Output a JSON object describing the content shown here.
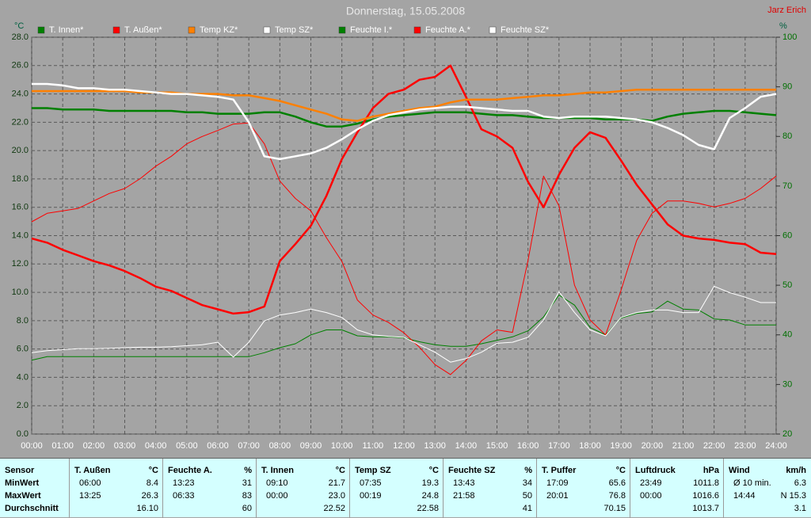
{
  "chart_data": {
    "type": "line",
    "title": "Donnerstag, 15.05.2008",
    "corner_label": "Jarz Erich",
    "y_label": "°C",
    "y2_label": "%",
    "grid": true,
    "x": [
      0,
      0.5,
      1,
      1.5,
      2,
      2.5,
      3,
      3.5,
      4,
      4.5,
      5,
      5.5,
      6,
      6.5,
      7,
      7.5,
      8,
      8.5,
      9,
      9.5,
      10,
      10.5,
      11,
      11.5,
      12,
      12.5,
      13,
      13.5,
      14,
      14.5,
      15,
      15.5,
      16,
      16.5,
      17,
      17.5,
      18,
      18.5,
      19,
      19.5,
      20,
      20.5,
      21,
      21.5,
      22,
      22.5,
      23,
      23.5,
      24
    ],
    "xlim": [
      0,
      24
    ],
    "xticks": [
      {
        "value": 0,
        "label": "00:00"
      },
      {
        "value": 1,
        "label": "01:00"
      },
      {
        "value": 2,
        "label": "02:00"
      },
      {
        "value": 3,
        "label": "03:00"
      },
      {
        "value": 4,
        "label": "04:00"
      },
      {
        "value": 5,
        "label": "05:00"
      },
      {
        "value": 6,
        "label": "06:00"
      },
      {
        "value": 7,
        "label": "07:00"
      },
      {
        "value": 8,
        "label": "08:00"
      },
      {
        "value": 9,
        "label": "09:00"
      },
      {
        "value": 10,
        "label": "10:00"
      },
      {
        "value": 11,
        "label": "11:00"
      },
      {
        "value": 12,
        "label": "12:00"
      },
      {
        "value": 13,
        "label": "13:00"
      },
      {
        "value": 14,
        "label": "14:00"
      },
      {
        "value": 15,
        "label": "15:00"
      },
      {
        "value": 16,
        "label": "16:00"
      },
      {
        "value": 17,
        "label": "17:00"
      },
      {
        "value": 18,
        "label": "18:00"
      },
      {
        "value": 19,
        "label": "19:00"
      },
      {
        "value": 20,
        "label": "20:00"
      },
      {
        "value": 21,
        "label": "21:00"
      },
      {
        "value": 22,
        "label": "22:00"
      },
      {
        "value": 23,
        "label": "23:00"
      },
      {
        "value": 24,
        "label": "24:00"
      }
    ],
    "ylim": [
      0,
      28
    ],
    "yticks": [
      {
        "value": 0,
        "label": "0.0"
      },
      {
        "value": 2,
        "label": "2.0"
      },
      {
        "value": 4,
        "label": "4.0"
      },
      {
        "value": 6,
        "label": "6.0"
      },
      {
        "value": 8,
        "label": "8.0"
      },
      {
        "value": 10,
        "label": "10.0"
      },
      {
        "value": 12,
        "label": "12.0"
      },
      {
        "value": 14,
        "label": "14.0"
      },
      {
        "value": 16,
        "label": "16.0"
      },
      {
        "value": 18,
        "label": "18.0"
      },
      {
        "value": 20,
        "label": "20.0"
      },
      {
        "value": 22,
        "label": "22.0"
      },
      {
        "value": 24,
        "label": "24.0"
      },
      {
        "value": 26,
        "label": "26.0"
      },
      {
        "value": 28,
        "label": "28.0"
      }
    ],
    "y2lim": [
      20,
      100
    ],
    "y2ticks": [
      20,
      30,
      40,
      50,
      60,
      70,
      80,
      90,
      100
    ],
    "series": [
      {
        "name": "T. Innen*",
        "color": "#008000",
        "axis": "y",
        "values": [
          23.0,
          23.0,
          22.9,
          22.9,
          22.9,
          22.8,
          22.8,
          22.8,
          22.8,
          22.8,
          22.7,
          22.7,
          22.6,
          22.6,
          22.6,
          22.7,
          22.7,
          22.4,
          22.0,
          21.7,
          21.7,
          21.9,
          22.2,
          22.4,
          22.5,
          22.6,
          22.7,
          22.7,
          22.7,
          22.6,
          22.5,
          22.5,
          22.4,
          22.3,
          22.3,
          22.3,
          22.3,
          22.2,
          22.2,
          22.2,
          22.1,
          22.4,
          22.6,
          22.7,
          22.8,
          22.8,
          22.7,
          22.6,
          22.5
        ]
      },
      {
        "name": "T. Außen*",
        "color": "#ff0000",
        "axis": "y",
        "values": [
          13.8,
          13.5,
          13.0,
          12.6,
          12.2,
          11.9,
          11.5,
          11.0,
          10.4,
          10.1,
          9.6,
          9.1,
          8.8,
          8.5,
          8.6,
          9.0,
          12.2,
          13.4,
          14.7,
          16.8,
          19.4,
          21.3,
          23.0,
          24.0,
          24.3,
          25.0,
          25.2,
          26.0,
          23.8,
          21.5,
          21.0,
          20.2,
          17.8,
          16.0,
          18.3,
          20.2,
          21.3,
          20.9,
          19.3,
          17.6,
          16.2,
          14.8,
          14.0,
          13.8,
          13.7,
          13.5,
          13.4,
          12.8,
          12.7
        ]
      },
      {
        "name": "Temp KZ*",
        "color": "#ff8000",
        "axis": "y",
        "values": [
          24.2,
          24.2,
          24.2,
          24.2,
          24.2,
          24.2,
          24.2,
          24.1,
          24.1,
          24.1,
          24.0,
          24.0,
          24.0,
          23.9,
          23.9,
          23.7,
          23.5,
          23.2,
          22.9,
          22.6,
          22.2,
          22.1,
          22.4,
          22.6,
          22.8,
          23.0,
          23.1,
          23.4,
          23.6,
          23.6,
          23.6,
          23.7,
          23.8,
          23.9,
          23.9,
          24.0,
          24.1,
          24.1,
          24.2,
          24.3,
          24.3,
          24.3,
          24.3,
          24.3,
          24.3,
          24.3,
          24.3,
          24.3,
          24.3
        ]
      },
      {
        "name": "Temp SZ*",
        "color": "#ffffff",
        "axis": "y",
        "values": [
          24.7,
          24.7,
          24.6,
          24.4,
          24.4,
          24.3,
          24.3,
          24.2,
          24.1,
          24.0,
          24.0,
          23.9,
          23.8,
          23.6,
          22.0,
          19.6,
          19.4,
          19.6,
          19.8,
          20.2,
          20.8,
          21.5,
          22.1,
          22.5,
          22.7,
          22.9,
          23.0,
          23.1,
          23.1,
          23.0,
          22.9,
          22.8,
          22.8,
          22.4,
          22.3,
          22.4,
          22.4,
          22.4,
          22.3,
          22.2,
          22.0,
          21.6,
          21.1,
          20.4,
          20.1,
          22.3,
          23.0,
          23.8,
          24.0
        ]
      },
      {
        "name": "Feuchte I.*",
        "color": "#008000",
        "axis": "y2",
        "values": [
          34.9,
          35.6,
          35.6,
          35.6,
          35.6,
          35.6,
          35.6,
          35.6,
          35.6,
          35.6,
          35.6,
          35.6,
          35.6,
          35.6,
          35.6,
          36.4,
          37.4,
          38.2,
          40.0,
          41.0,
          41.0,
          39.8,
          39.6,
          39.6,
          39.4,
          38.6,
          38.0,
          37.7,
          37.7,
          38.2,
          38.9,
          39.6,
          40.8,
          43.6,
          48.0,
          46.0,
          41.5,
          40.0,
          43.4,
          44.3,
          44.6,
          46.8,
          45.2,
          45.0,
          43.2,
          43.0,
          42.0,
          42.0,
          42.0
        ]
      },
      {
        "name": "Feuchte A.*",
        "color": "#ff0000",
        "axis": "y2",
        "values": [
          62.8,
          64.5,
          65.0,
          65.5,
          67.0,
          68.5,
          69.5,
          71.5,
          74.0,
          76.0,
          78.5,
          80.0,
          81.2,
          82.5,
          82.7,
          78.5,
          71.0,
          67.5,
          65.0,
          59.6,
          54.8,
          47.0,
          44.0,
          42.5,
          40.4,
          37.5,
          34.0,
          32.0,
          34.8,
          38.8,
          41.0,
          40.5,
          55.0,
          72.0,
          66.0,
          50.0,
          43.0,
          40.0,
          49.0,
          59.0,
          64.5,
          67.0,
          67.0,
          66.5,
          65.8,
          66.5,
          67.5,
          69.5,
          72.0
        ]
      },
      {
        "name": "Feuchte SZ*",
        "color": "#ffffff",
        "axis": "y2",
        "values": [
          36.4,
          36.8,
          37.0,
          37.2,
          37.2,
          37.3,
          37.4,
          37.5,
          37.5,
          37.6,
          37.8,
          38.0,
          38.5,
          35.5,
          38.5,
          42.8,
          44.0,
          44.5,
          45.2,
          44.5,
          43.5,
          41.0,
          40.0,
          39.7,
          39.5,
          38.0,
          36.5,
          34.5,
          35.2,
          36.5,
          38.3,
          38.5,
          39.5,
          43.0,
          48.7,
          44.5,
          41.0,
          39.8,
          43.5,
          44.5,
          45.0,
          45.0,
          44.5,
          44.5,
          49.8,
          48.5,
          47.6,
          46.5,
          46.5
        ]
      }
    ]
  },
  "table": {
    "header": "Sensor",
    "columns": [
      {
        "name": "T. Außen",
        "unit": "°C"
      },
      {
        "name": "Feuchte A.",
        "unit": "%"
      },
      {
        "name": "T. Innen",
        "unit": "°C"
      },
      {
        "name": "Temp SZ",
        "unit": "°C"
      },
      {
        "name": "Feuchte SZ",
        "unit": "%"
      },
      {
        "name": "T. Puffer",
        "unit": "°C"
      },
      {
        "name": "Luftdruck",
        "unit": "hPa"
      },
      {
        "name": "Wind",
        "unit": "km/h"
      }
    ],
    "rows": [
      {
        "label": "MinWert",
        "cells": [
          {
            "time": "06:00",
            "value": "8.4"
          },
          {
            "time": "13:23",
            "value": "31"
          },
          {
            "time": "09:10",
            "value": "21.7"
          },
          {
            "time": "07:35",
            "value": "19.3"
          },
          {
            "time": "13:43",
            "value": "34"
          },
          {
            "time": "17:09",
            "value": "65.6"
          },
          {
            "time": "23:49",
            "value": "1011.8"
          },
          {
            "time": "Ø 10 min.",
            "value": "6.3"
          }
        ]
      },
      {
        "label": "MaxWert",
        "cells": [
          {
            "time": "13:25",
            "value": "26.3"
          },
          {
            "time": "06:33",
            "value": "83"
          },
          {
            "time": "00:00",
            "value": "23.0"
          },
          {
            "time": "00:19",
            "value": "24.8"
          },
          {
            "time": "21:58",
            "value": "50"
          },
          {
            "time": "20:01",
            "value": "76.8"
          },
          {
            "time": "00:00",
            "value": "1016.6"
          },
          {
            "time": "14:44",
            "value": "N 15.3"
          }
        ]
      },
      {
        "label": "Durchschnitt",
        "cells": [
          {
            "value": "16.10"
          },
          {
            "value": "60"
          },
          {
            "value": "22.52"
          },
          {
            "value": "22.58"
          },
          {
            "value": "41"
          },
          {
            "value": "70.15"
          },
          {
            "value": "1013.7"
          },
          {
            "value": "3.1"
          }
        ]
      }
    ]
  }
}
